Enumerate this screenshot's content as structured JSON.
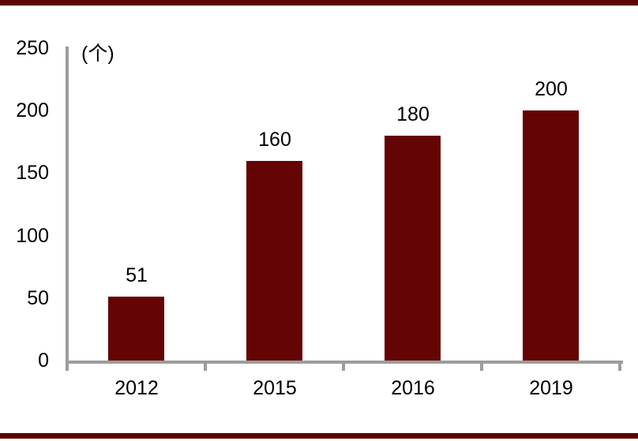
{
  "chart_data": {
    "type": "bar",
    "categories": [
      "2012",
      "2015",
      "2016",
      "2019"
    ],
    "values": [
      51,
      160,
      180,
      200
    ],
    "data_labels": [
      "51",
      "160",
      "180",
      "200"
    ],
    "title": "",
    "xlabel": "",
    "ylabel": "",
    "unit_label": "(个)",
    "y_ticks": [
      0,
      50,
      100,
      150,
      200,
      250
    ],
    "ylim": [
      0,
      250
    ],
    "grid": false,
    "legend": false,
    "bar_color": "#640404",
    "axis_color": "#9C9C9C",
    "text_color": "#000000"
  },
  "decor": {
    "top_band_color": "#5C0404",
    "bottom_band_color": "#5C0404"
  }
}
